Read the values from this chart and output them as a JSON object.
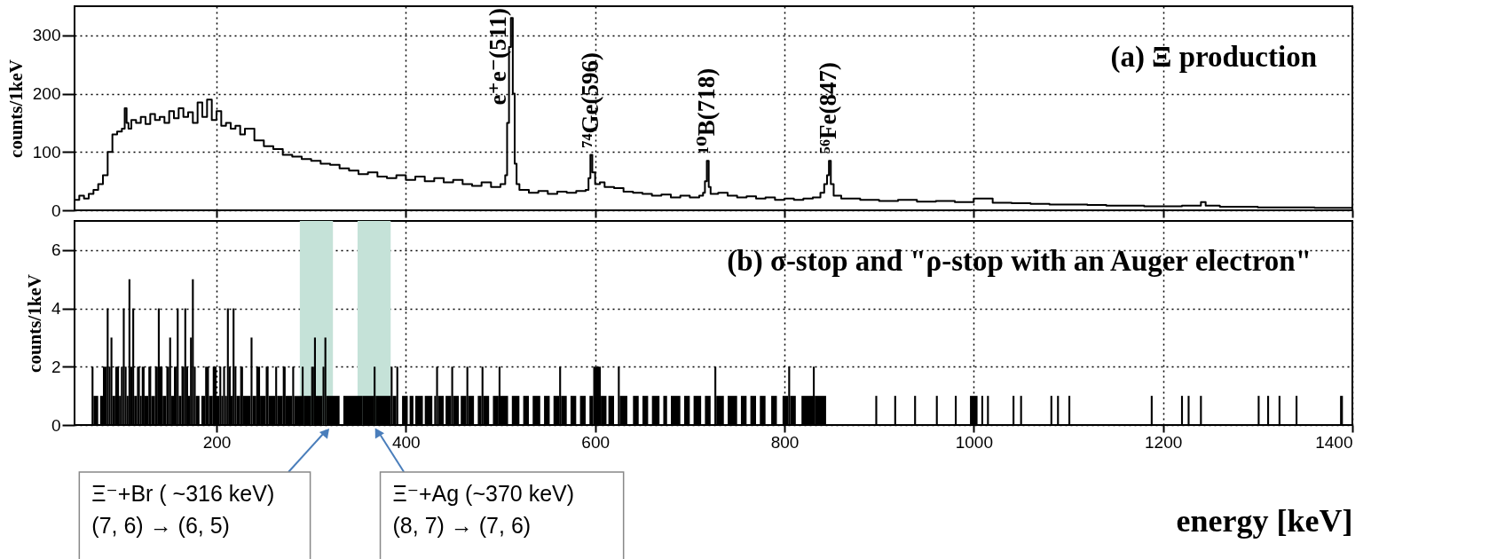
{
  "chart_data": [
    {
      "type": "step",
      "color": "#000000",
      "xlim": [
        50,
        1400
      ],
      "xticks": [
        200,
        400,
        600,
        800,
        1000,
        1200,
        1400
      ],
      "ylim": [
        0,
        350
      ],
      "yticks": [
        0,
        100,
        200,
        300
      ],
      "ylabel": "counts/1keV",
      "grid": true,
      "tick_labels": "y",
      "x": [
        50,
        55,
        60,
        65,
        70,
        75,
        80,
        85,
        90,
        95,
        100,
        103,
        105,
        107,
        110,
        115,
        120,
        125,
        130,
        135,
        140,
        145,
        150,
        155,
        160,
        165,
        170,
        175,
        180,
        185,
        190,
        195,
        200,
        205,
        210,
        215,
        220,
        225,
        230,
        240,
        250,
        260,
        270,
        280,
        290,
        300,
        310,
        320,
        330,
        340,
        350,
        360,
        370,
        380,
        390,
        400,
        410,
        420,
        430,
        440,
        450,
        460,
        470,
        480,
        490,
        500,
        505,
        507,
        509,
        511,
        513,
        515,
        517,
        520,
        530,
        540,
        550,
        560,
        570,
        580,
        590,
        593,
        595,
        597,
        600,
        605,
        610,
        620,
        630,
        640,
        650,
        660,
        670,
        680,
        690,
        700,
        710,
        714,
        716,
        718,
        720,
        722,
        730,
        740,
        750,
        760,
        770,
        780,
        790,
        800,
        810,
        820,
        830,
        838,
        842,
        845,
        847,
        849,
        852,
        860,
        880,
        900,
        920,
        940,
        960,
        980,
        1000,
        1020,
        1040,
        1060,
        1080,
        1100,
        1120,
        1140,
        1160,
        1180,
        1200,
        1220,
        1240,
        1245,
        1260,
        1280,
        1300,
        1320,
        1340,
        1360,
        1380,
        1400
      ],
      "values": [
        18,
        25,
        20,
        28,
        35,
        45,
        60,
        100,
        130,
        135,
        140,
        175,
        150,
        140,
        155,
        150,
        160,
        148,
        165,
        155,
        160,
        150,
        170,
        158,
        175,
        160,
        168,
        150,
        185,
        160,
        190,
        155,
        170,
        145,
        150,
        140,
        145,
        130,
        140,
        120,
        110,
        105,
        95,
        92,
        88,
        85,
        80,
        78,
        72,
        68,
        62,
        65,
        58,
        55,
        60,
        52,
        58,
        50,
        55,
        48,
        52,
        45,
        42,
        48,
        40,
        45,
        60,
        150,
        280,
        330,
        200,
        80,
        45,
        35,
        30,
        33,
        28,
        32,
        30,
        33,
        35,
        55,
        95,
        65,
        45,
        48,
        40,
        38,
        32,
        30,
        28,
        25,
        27,
        22,
        25,
        22,
        25,
        30,
        50,
        85,
        40,
        28,
        30,
        25,
        22,
        24,
        20,
        22,
        18,
        20,
        18,
        20,
        22,
        30,
        45,
        60,
        85,
        45,
        25,
        20,
        18,
        16,
        18,
        15,
        16,
        14,
        20,
        13,
        12,
        11,
        10,
        10,
        9,
        8,
        8,
        7,
        7,
        8,
        14,
        8,
        6,
        6,
        5,
        5,
        5,
        4,
        4,
        4
      ],
      "annotations": [
        "(a) Ξ production",
        {
          "text": "e⁺e⁻(511)",
          "x": 511,
          "y": 330
        },
        {
          "text": "⁷⁴Ge(596)",
          "x": 596,
          "y": 95
        },
        {
          "text": "¹⁰B(718)",
          "x": 718,
          "y": 85
        },
        {
          "text": "⁵⁶Fe(847)",
          "x": 847,
          "y": 85
        }
      ]
    },
    {
      "type": "histogram",
      "color": "#000000",
      "xlim": [
        50,
        1400
      ],
      "xticks": [
        200,
        400,
        600,
        800,
        1000,
        1200,
        1400
      ],
      "ylim": [
        0,
        7
      ],
      "yticks": [
        0,
        2,
        4,
        6
      ],
      "ylabel": "counts/1keV",
      "xlabel": "energy [keV]",
      "grid": true,
      "bins": [
        68,
        70,
        75,
        77,
        80,
        84,
        86,
        88,
        90,
        93,
        97,
        99,
        101,
        103,
        105,
        107,
        109,
        111,
        113,
        116,
        119,
        121,
        124,
        128,
        131,
        135,
        138,
        140,
        143,
        147,
        150,
        152,
        155,
        158,
        160,
        163,
        166,
        168,
        170,
        172,
        174,
        176,
        178,
        182,
        184,
        188,
        192,
        196,
        200,
        203,
        205,
        207,
        209,
        211,
        213,
        215,
        217,
        219,
        221,
        225,
        228,
        236,
        238,
        242,
        246,
        252,
        255,
        262,
        264,
        270,
        273,
        280,
        282,
        290,
        292,
        300,
        303,
        305,
        312,
        314,
        316,
        330,
        334,
        354,
        366,
        368,
        384,
        386,
        390,
        392,
        396,
        402,
        404,
        408,
        410,
        418,
        420,
        428,
        430,
        432,
        434,
        440,
        442,
        448,
        450,
        456,
        458,
        464,
        466,
        472,
        476,
        480,
        482,
        488,
        492,
        498,
        500,
        508,
        512,
        520,
        524,
        530,
        534,
        542,
        546,
        552,
        556,
        562,
        564,
        570,
        574,
        580,
        584,
        590,
        594,
        598,
        606,
        612,
        614,
        620,
        624,
        626,
        634,
        640,
        646,
        650,
        656,
        660,
        668,
        672,
        676,
        680,
        690,
        694,
        700,
        704,
        712,
        716,
        722,
        726,
        728,
        736,
        740,
        750,
        754,
        760,
        764,
        770,
        774,
        780,
        786,
        792,
        798,
        804,
        806,
        812,
        818,
        830,
        832,
        844,
        896,
        898,
        916,
        918,
        937,
        939,
        960,
        962,
        980,
        982,
        996,
        1004,
        1008,
        1010,
        1014,
        1016,
        1041,
        1043,
        1049,
        1051,
        1081,
        1083,
        1088,
        1090,
        1100,
        1102,
        1187,
        1189,
        1219,
        1221,
        1226,
        1228,
        1239,
        1241,
        1300,
        1302,
        1310,
        1312,
        1322,
        1324,
        1340,
        1342,
        1387,
        1390
      ],
      "values": [
        2,
        1,
        0,
        1,
        2,
        4,
        2,
        3,
        1,
        2,
        1,
        2,
        4,
        2,
        1,
        5,
        2,
        4,
        1,
        2,
        1,
        2,
        1,
        2,
        1,
        2,
        4,
        2,
        1,
        2,
        3,
        1,
        2,
        4,
        1,
        2,
        4,
        2,
        1,
        3,
        5,
        2,
        1,
        0,
        1,
        2,
        1,
        2,
        1,
        2,
        1,
        2,
        1,
        4,
        2,
        1,
        4,
        2,
        1,
        2,
        1,
        3,
        1,
        2,
        1,
        2,
        1,
        2,
        1,
        2,
        1,
        2,
        1,
        2,
        1,
        2,
        3,
        1,
        2,
        3,
        1,
        0,
        1,
        1,
        2,
        1,
        2,
        1,
        2,
        0,
        1,
        0,
        1,
        0,
        1,
        0,
        1,
        0,
        1,
        2,
        1,
        0,
        1,
        2,
        1,
        0,
        1,
        2,
        1,
        0,
        1,
        2,
        1,
        0,
        1,
        2,
        1,
        0,
        1,
        0,
        1,
        0,
        1,
        0,
        1,
        0,
        1,
        2,
        1,
        0,
        1,
        0,
        1,
        0,
        1,
        2,
        1,
        0,
        1,
        0,
        2,
        1,
        0,
        1,
        0,
        1,
        0,
        1,
        0,
        1,
        0,
        1,
        0,
        1,
        0,
        1,
        0,
        1,
        0,
        2,
        1,
        0,
        1,
        0,
        1,
        0,
        1,
        0,
        1,
        0,
        1,
        0,
        1,
        2,
        1,
        0,
        1,
        2,
        1,
        0,
        1,
        0,
        1,
        0,
        1,
        0,
        1,
        0,
        1,
        0,
        1,
        0,
        1,
        0,
        1,
        0,
        1,
        0,
        1,
        0,
        1,
        0,
        1,
        0,
        1,
        0,
        1,
        0,
        1,
        0,
        1,
        0,
        1,
        0,
        1,
        0,
        1,
        0,
        1,
        0,
        1,
        0,
        1
      ],
      "bands": [
        {
          "axis": "x",
          "from": 288,
          "to": 323,
          "color": "#c5e2d8"
        },
        {
          "axis": "x",
          "from": 349,
          "to": 384,
          "color": "#c5e2d8"
        }
      ],
      "annotations": [
        "(b) σ-stop and \"ρ-stop with an  Auger electron\"",
        {
          "text": "Ξ⁻+Br ( ~316 keV)\n(7, 6) → (6, 5)",
          "x": 316,
          "y": 0
        },
        {
          "text": "Ξ⁻+Ag (~370 keV)\n(8, 7) → (7, 6)",
          "x": 370,
          "y": 0
        }
      ]
    }
  ]
}
